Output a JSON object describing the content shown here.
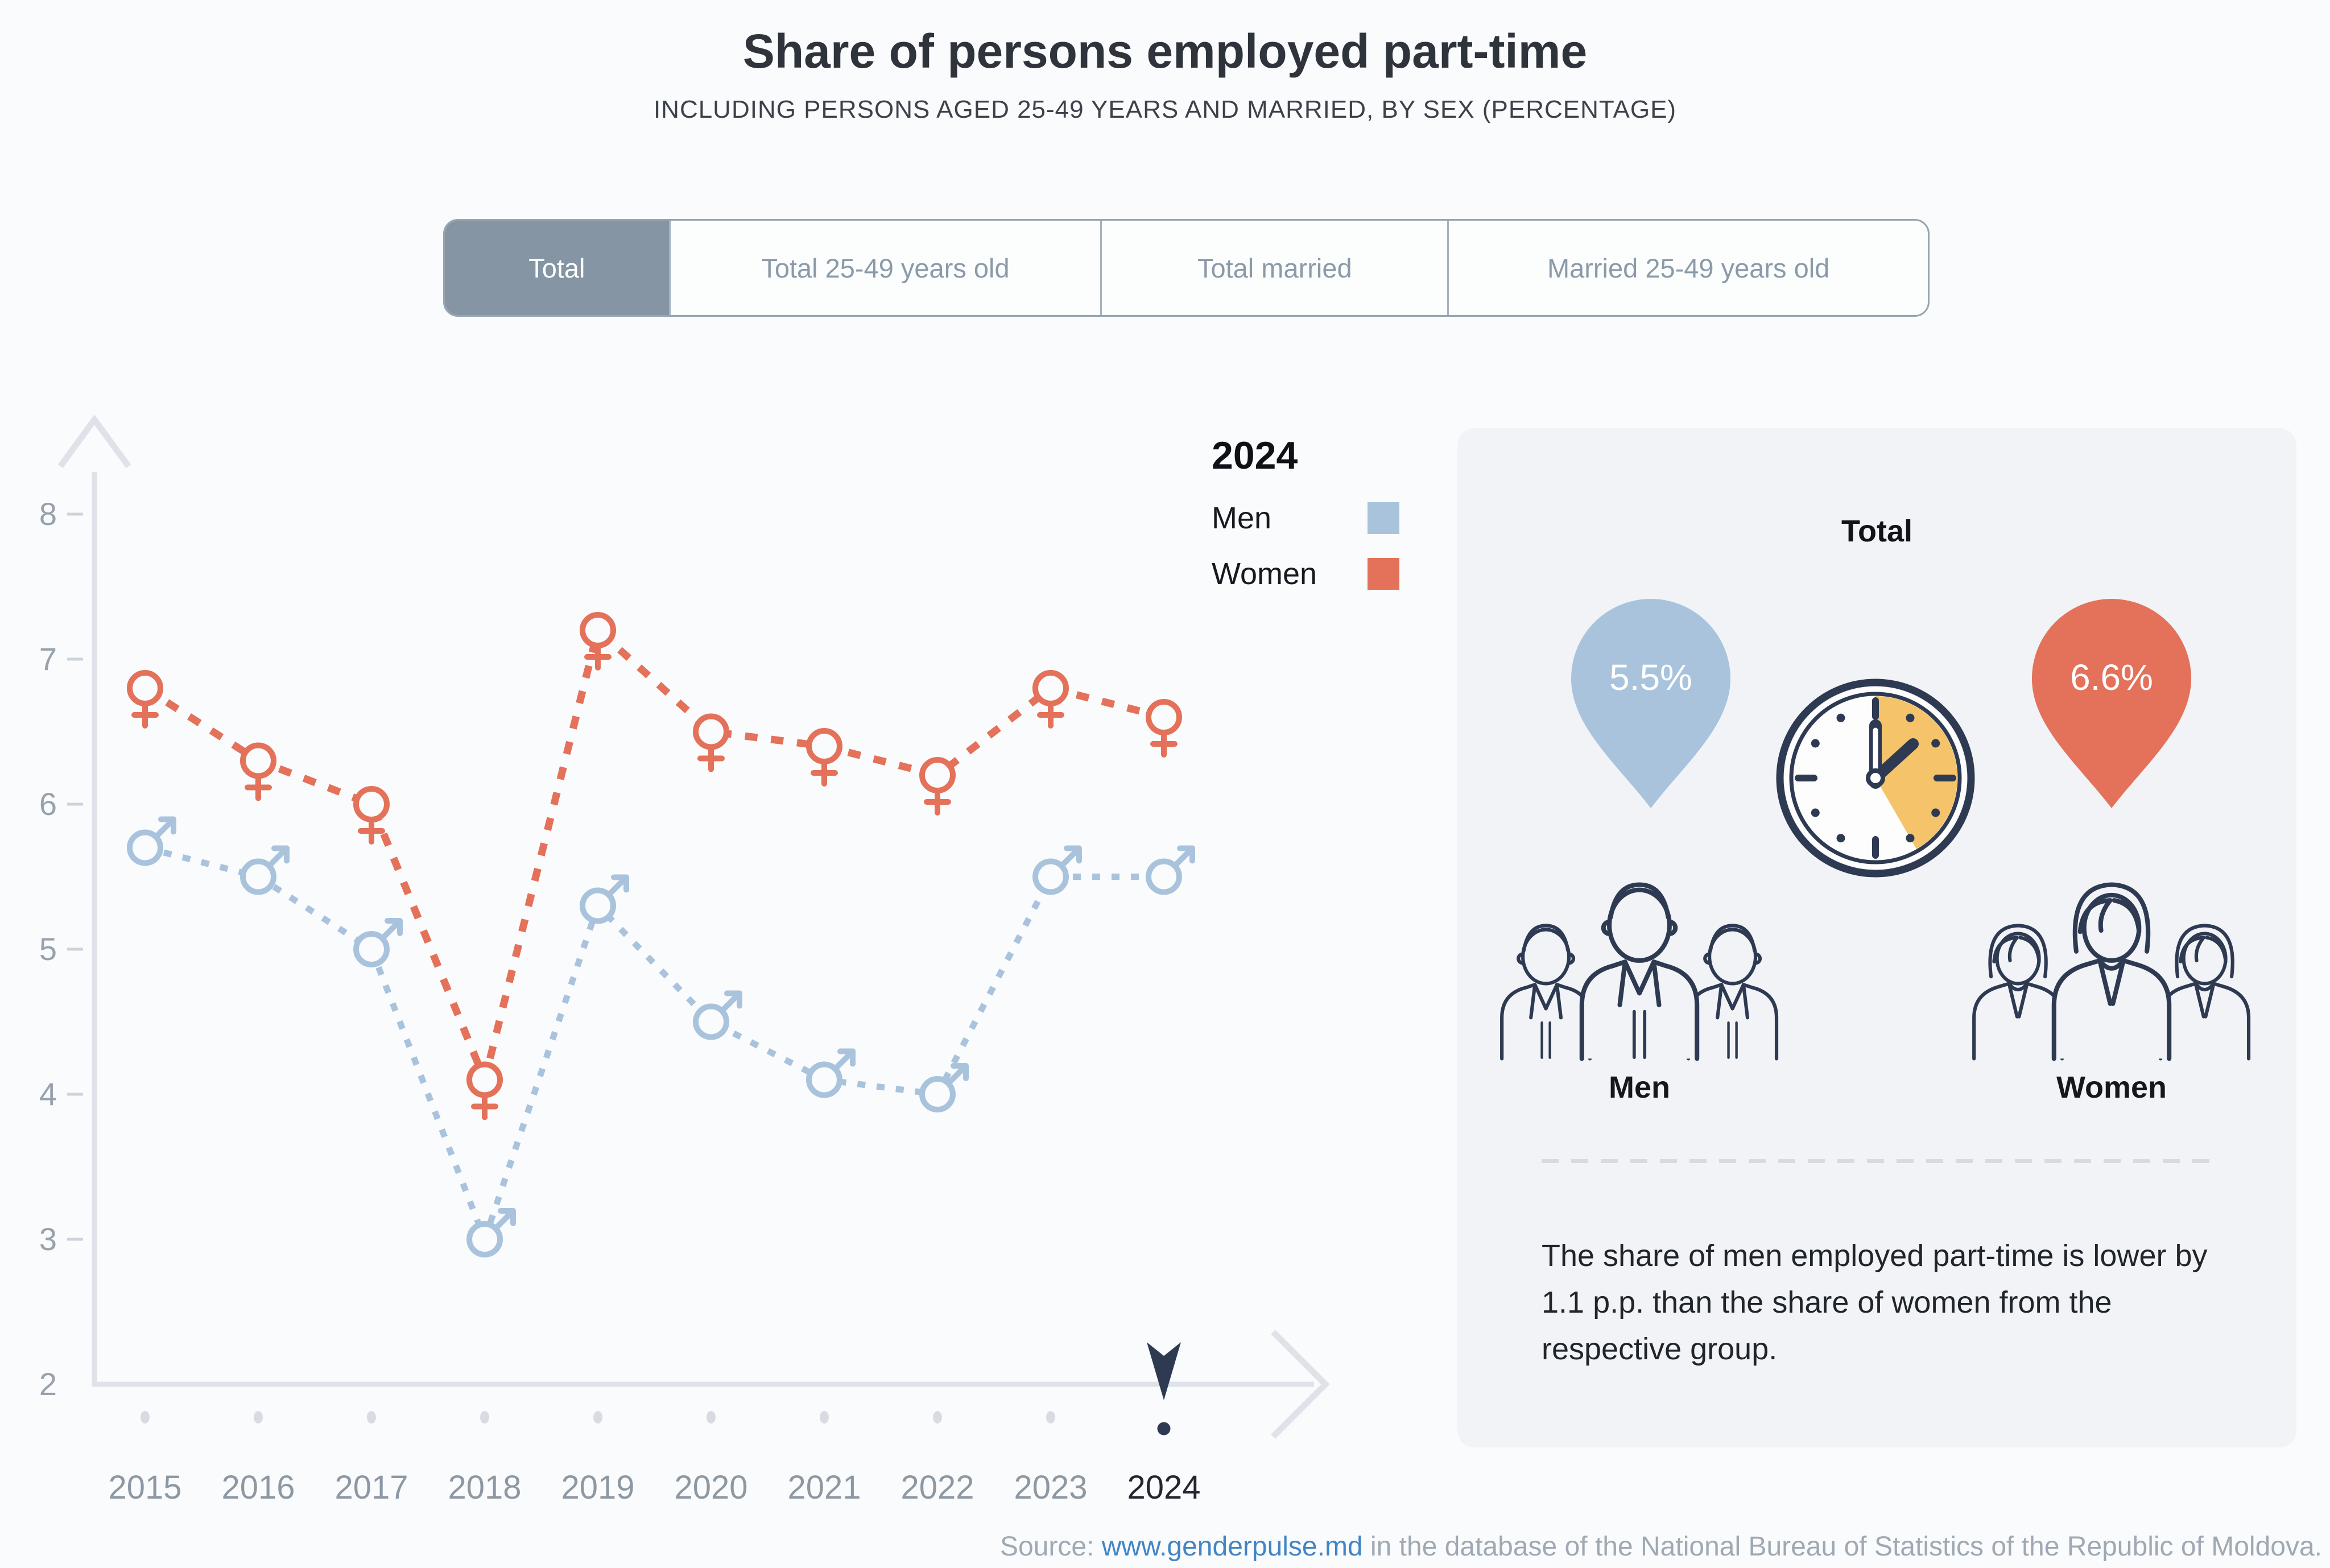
{
  "header": {
    "title": "Share of persons employed part-time",
    "subtitle": "INCLUDING PERSONS AGED 25-49 YEARS AND MARRIED, BY SEX (PERCENTAGE)"
  },
  "tabs": [
    {
      "label": "Total",
      "active": true
    },
    {
      "label": "Total 25-49 years old",
      "active": false
    },
    {
      "label": "Total married",
      "active": false
    },
    {
      "label": "Married 25-49 years old",
      "active": false
    }
  ],
  "chart_data": {
    "type": "line",
    "x": [
      "2015",
      "2016",
      "2017",
      "2018",
      "2019",
      "2020",
      "2021",
      "2022",
      "2023",
      "2024"
    ],
    "series": [
      {
        "name": "Men",
        "symbol": "male",
        "color": "#a9c3dd",
        "values": [
          5.7,
          5.5,
          5.0,
          3.0,
          5.3,
          4.5,
          4.1,
          4.0,
          5.5,
          5.5
        ]
      },
      {
        "name": "Women",
        "symbol": "female",
        "color": "#e4715a",
        "values": [
          6.8,
          6.3,
          6.0,
          4.1,
          7.2,
          6.5,
          6.4,
          6.2,
          6.8,
          6.6
        ]
      }
    ],
    "ylim": [
      2,
      8
    ],
    "yticks": [
      2,
      3,
      4,
      5,
      6,
      7,
      8
    ],
    "selected_year": "2024",
    "legend_title": "2024",
    "legend_position": "top-right",
    "grid": false,
    "line_style": "dashed"
  },
  "panel": {
    "title": "Total",
    "men": {
      "value": "5.5%",
      "label": "Men"
    },
    "women": {
      "value": "6.6%",
      "label": "Women"
    },
    "description": "The share of men employed part-time is lower by 1.1 p.p. than the share of women from the respective group."
  },
  "source": {
    "label": "Source:",
    "link": "www.genderpulse.md",
    "rest": " in the database of the National Bureau of Statistics of the Republic of Moldova."
  },
  "colors": {
    "men": "#a9c3dd",
    "women": "#e4715a",
    "navy": "#2e3a52",
    "tab_active_bg": "#8595a4",
    "axis": "#dfe3e9",
    "axis_text": "#98a2ad",
    "year_text": "#8d98a3",
    "selected_year_text": "#22272f",
    "clock_accent": "#f4c36a",
    "page_bg": "#fafbfc",
    "panel_bg": "#f1f3f6"
  }
}
